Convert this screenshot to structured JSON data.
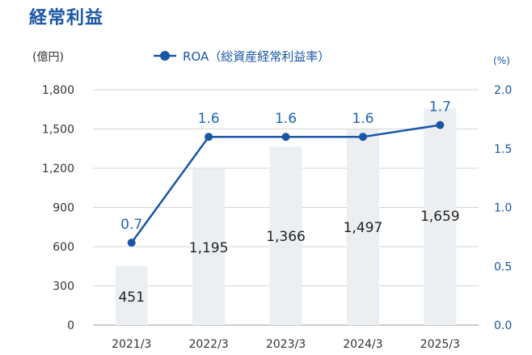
{
  "title": "経常利益",
  "chart_data": {
    "type": "bar",
    "categories": [
      "2021/3",
      "2022/3",
      "2023/3",
      "2024/3",
      "2025/3"
    ],
    "bars": {
      "values": [
        451,
        1195,
        1366,
        1497,
        1659
      ],
      "labels": [
        "451",
        "1,195",
        "1,366",
        "1,497",
        "1,659"
      ],
      "color": "#eceff2",
      "unit": "(億円)"
    },
    "line": {
      "name": "ROA（総資産経常利益率）",
      "values": [
        0.7,
        1.6,
        1.6,
        1.6,
        1.7
      ],
      "labels": [
        "0.7",
        "1.6",
        "1.6",
        "1.6",
        "1.7"
      ],
      "color": "#1a56a6",
      "unit": "(%)"
    },
    "y_left": {
      "min": 0,
      "max": 1800,
      "ticks": [
        "0",
        "300",
        "600",
        "900",
        "1,200",
        "1,500",
        "1,800"
      ]
    },
    "y_right": {
      "min": 0,
      "max": 2.0,
      "ticks": [
        "0.0",
        "0.5",
        "1.0",
        "1.5",
        "2.0"
      ]
    },
    "grid": true,
    "legend_position": "top"
  }
}
